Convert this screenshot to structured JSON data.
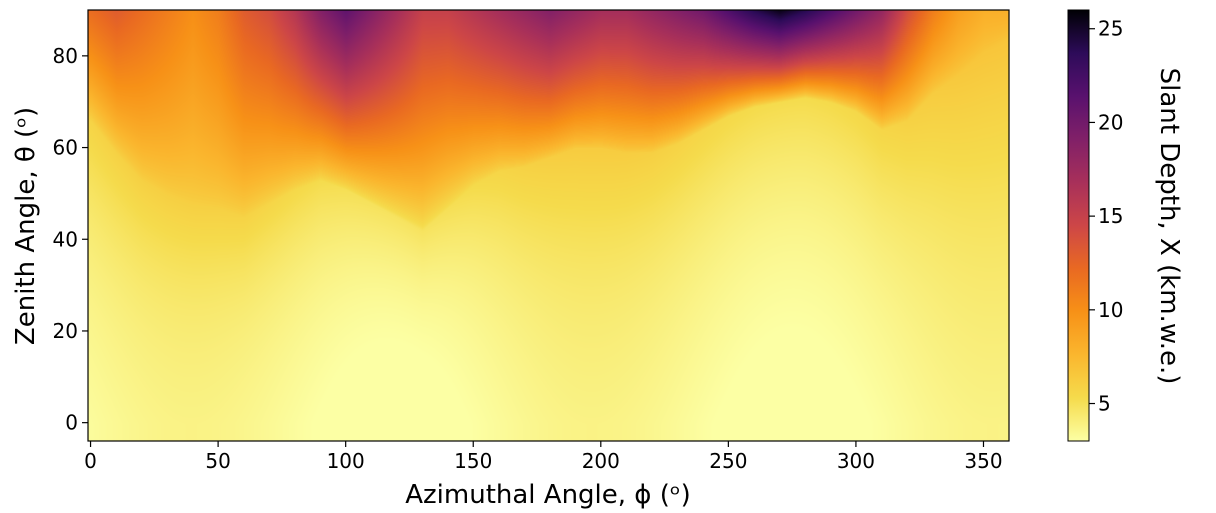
{
  "chart_data": {
    "type": "heatmap",
    "xlabel": "Azimuthal Angle, ϕ (ᵒ)",
    "ylabel": "Zenith Angle, θ (ᵒ)",
    "colorbar_label": "Slant Depth, X (km.w.e.)",
    "colormap": "inferno",
    "xlim": [
      -1,
      360
    ],
    "ylim": [
      -4,
      90
    ],
    "clim": [
      3,
      26
    ],
    "x_ticks": [
      0,
      50,
      100,
      150,
      200,
      250,
      300,
      350
    ],
    "y_ticks": [
      0,
      20,
      40,
      60,
      80
    ],
    "colorbar_ticks": [
      5,
      10,
      15,
      20,
      25
    ],
    "mountain_profile": {
      "description_units": "zenith angle (deg) where slant depth starts rising, by azimuth (deg)",
      "azimuth": [
        0,
        10,
        20,
        30,
        40,
        50,
        60,
        70,
        80,
        90,
        100,
        110,
        120,
        130,
        140,
        150,
        160,
        170,
        180,
        190,
        200,
        210,
        220,
        230,
        240,
        250,
        260,
        270,
        280,
        290,
        300,
        310,
        320,
        330,
        340,
        350,
        360
      ],
      "zenith_onset": [
        66,
        59,
        53,
        50,
        48,
        47,
        45,
        48,
        51,
        53,
        51,
        48,
        45,
        42,
        47,
        52,
        55,
        56,
        58,
        60,
        60,
        59,
        59,
        61,
        64,
        67,
        69,
        70,
        71,
        70,
        68,
        64,
        66,
        72,
        76,
        81,
        84
      ],
      "peak_depth": [
        12,
        13,
        12,
        11,
        10,
        11,
        13,
        14,
        16,
        19,
        21,
        19,
        17,
        15,
        15,
        16,
        17,
        18,
        19,
        18,
        17,
        17,
        18,
        19,
        20,
        22,
        24,
        25.5,
        24,
        22,
        20,
        18,
        14,
        11,
        9,
        8,
        8
      ]
    }
  }
}
